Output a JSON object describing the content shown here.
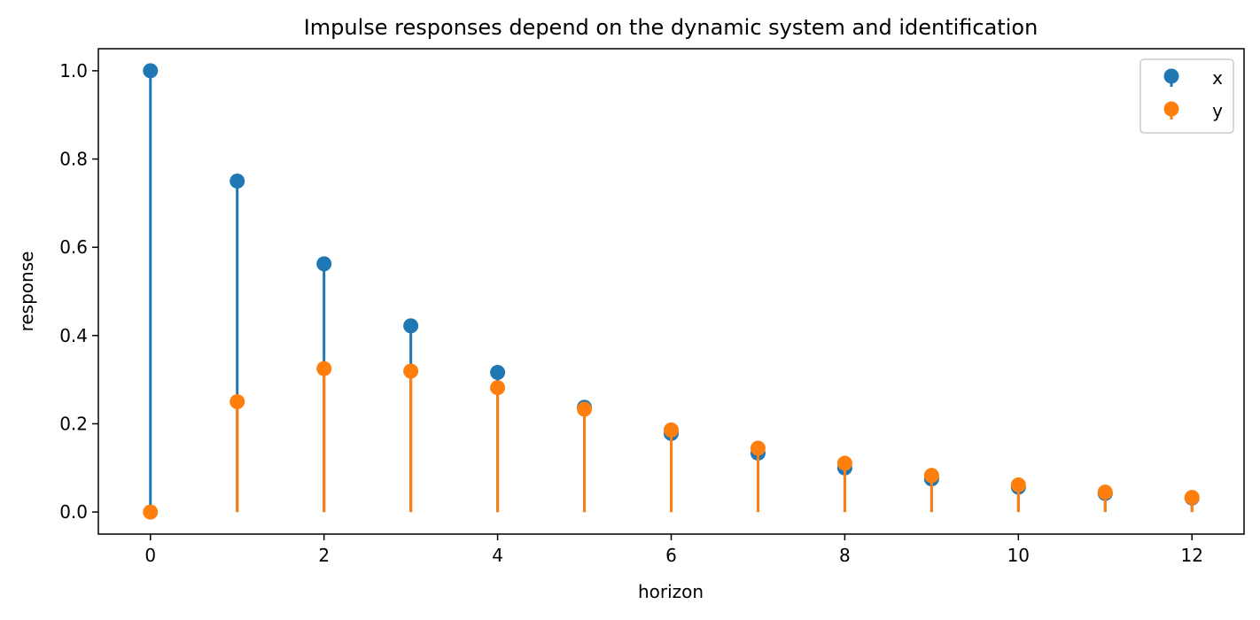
{
  "chart_data": {
    "type": "stem",
    "title": "Impulse responses depend on the dynamic system and identification",
    "xlabel": "horizon",
    "ylabel": "response",
    "xlim": [
      -0.6,
      12.6
    ],
    "ylim": [
      -0.05,
      1.05
    ],
    "xticks": [
      0,
      2,
      4,
      6,
      8,
      10,
      12
    ],
    "yticks": [
      0.0,
      0.2,
      0.4,
      0.6,
      0.8,
      1.0
    ],
    "ytick_labels": [
      "0.0",
      "0.2",
      "0.4",
      "0.6",
      "0.8",
      "1.0"
    ],
    "grid": false,
    "legend_position": "upper right",
    "x": [
      0,
      1,
      2,
      3,
      4,
      5,
      6,
      7,
      8,
      9,
      10,
      11,
      12
    ],
    "series": [
      {
        "name": "x",
        "color": "#1f77b4",
        "values": [
          1.0,
          0.75,
          0.5625,
          0.4219,
          0.3164,
          0.2373,
          0.178,
          0.1335,
          0.1001,
          0.0751,
          0.0563,
          0.0422,
          0.0317
        ]
      },
      {
        "name": "y",
        "color": "#ff7f0e",
        "values": [
          0.0,
          0.25,
          0.325,
          0.3194,
          0.2818,
          0.2331,
          0.186,
          0.1448,
          0.1105,
          0.083,
          0.0615,
          0.0452,
          0.033
        ]
      }
    ]
  }
}
